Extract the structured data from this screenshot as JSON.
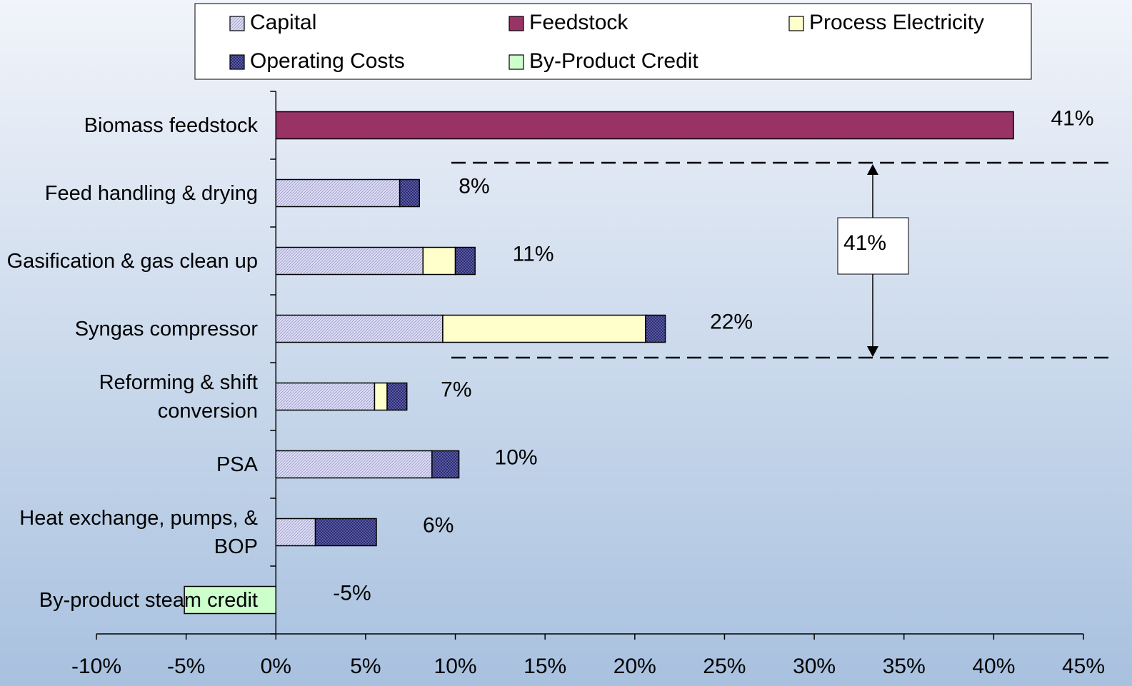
{
  "chart_data": {
    "type": "bar",
    "orientation": "horizontal",
    "stacked": true,
    "categories": [
      "Biomass feedstock",
      "Feed handling & drying",
      "Gasification & gas clean up",
      "Syngas compressor",
      "Reforming & shift conversion",
      "PSA",
      "Heat exchange, pumps, & BOP",
      "By-product steam credit"
    ],
    "series": [
      {
        "name": "Capital",
        "color": "#dcdcf4",
        "values": [
          0,
          6.9,
          8.2,
          9.3,
          5.5,
          8.7,
          2.2,
          0
        ]
      },
      {
        "name": "Feedstock",
        "color": "#993366",
        "values": [
          41.1,
          0,
          0,
          0,
          0,
          0,
          0,
          0
        ]
      },
      {
        "name": "Process Electricity",
        "color": "#ffffcc",
        "values": [
          0,
          0,
          1.8,
          11.3,
          0.7,
          0,
          0,
          0
        ]
      },
      {
        "name": "Operating Costs",
        "color": "#6666b0",
        "values": [
          0,
          1.1,
          1.1,
          1.1,
          1.1,
          1.5,
          3.4,
          0
        ]
      },
      {
        "name": "By-Product Credit",
        "color": "#ccffcc",
        "values": [
          0,
          0,
          0,
          0,
          0,
          0,
          0,
          -5.1
        ]
      }
    ],
    "totals": [
      41,
      8,
      11,
      22,
      7,
      10,
      6,
      -5
    ],
    "total_labels": [
      "41%",
      "8%",
      "11%",
      "22%",
      "7%",
      "10%",
      "6%",
      "-5%"
    ],
    "annotation": "41%",
    "xlim": [
      -10,
      45
    ],
    "xticks": [
      {
        "value": -10,
        "label": "-10%"
      },
      {
        "value": -5,
        "label": "-5%"
      },
      {
        "value": 0,
        "label": "0%"
      },
      {
        "value": 5,
        "label": "5%"
      },
      {
        "value": 10,
        "label": "10%"
      },
      {
        "value": 15,
        "label": "15%"
      },
      {
        "value": 20,
        "label": "20%"
      },
      {
        "value": 25,
        "label": "25%"
      },
      {
        "value": 30,
        "label": "30%"
      },
      {
        "value": 35,
        "label": "35%"
      },
      {
        "value": 40,
        "label": "40%"
      },
      {
        "value": 45,
        "label": "45%"
      }
    ],
    "legend": "top"
  }
}
